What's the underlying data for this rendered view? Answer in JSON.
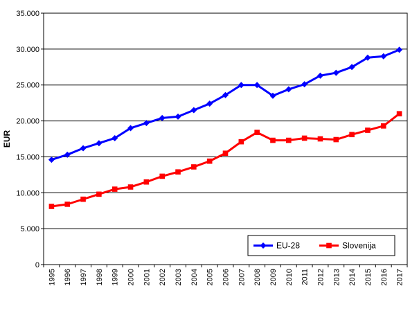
{
  "chart_data": {
    "type": "line",
    "title": "",
    "xlabel": "",
    "ylabel": "EUR",
    "ylim": [
      0,
      35000
    ],
    "yticks": [
      0,
      5000,
      10000,
      15000,
      20000,
      25000,
      30000,
      35000
    ],
    "ytick_labels": [
      "0",
      "5.000",
      "10.000",
      "15.000",
      "20.000",
      "25.000",
      "30.000",
      "35.000"
    ],
    "grid": "horizontal",
    "legend_position": "bottom-right",
    "categories": [
      "1995",
      "1996",
      "1997",
      "1998",
      "1999",
      "2000",
      "2001",
      "2002",
      "2003",
      "2004",
      "2005",
      "2006",
      "2007",
      "2008",
      "2009",
      "2010",
      "2011",
      "2012",
      "2013",
      "2014",
      "2015",
      "2016",
      "2017"
    ],
    "series": [
      {
        "name": "EU-28",
        "color": "#0000FF",
        "marker": "diamond",
        "values": [
          14600,
          15300,
          16200,
          16900,
          17600,
          19000,
          19700,
          20400,
          20600,
          21500,
          22400,
          23600,
          25000,
          25000,
          23500,
          24400,
          25100,
          26300,
          26700,
          27500,
          28800,
          29000,
          29900
        ]
      },
      {
        "name": "Slovenija",
        "color": "#FF0000",
        "marker": "square",
        "values": [
          8100,
          8400,
          9100,
          9800,
          10500,
          10800,
          11500,
          12300,
          12900,
          13600,
          14400,
          15500,
          17100,
          18400,
          17300,
          17300,
          17600,
          17500,
          17400,
          18100,
          18700,
          19300,
          21000
        ]
      }
    ]
  }
}
